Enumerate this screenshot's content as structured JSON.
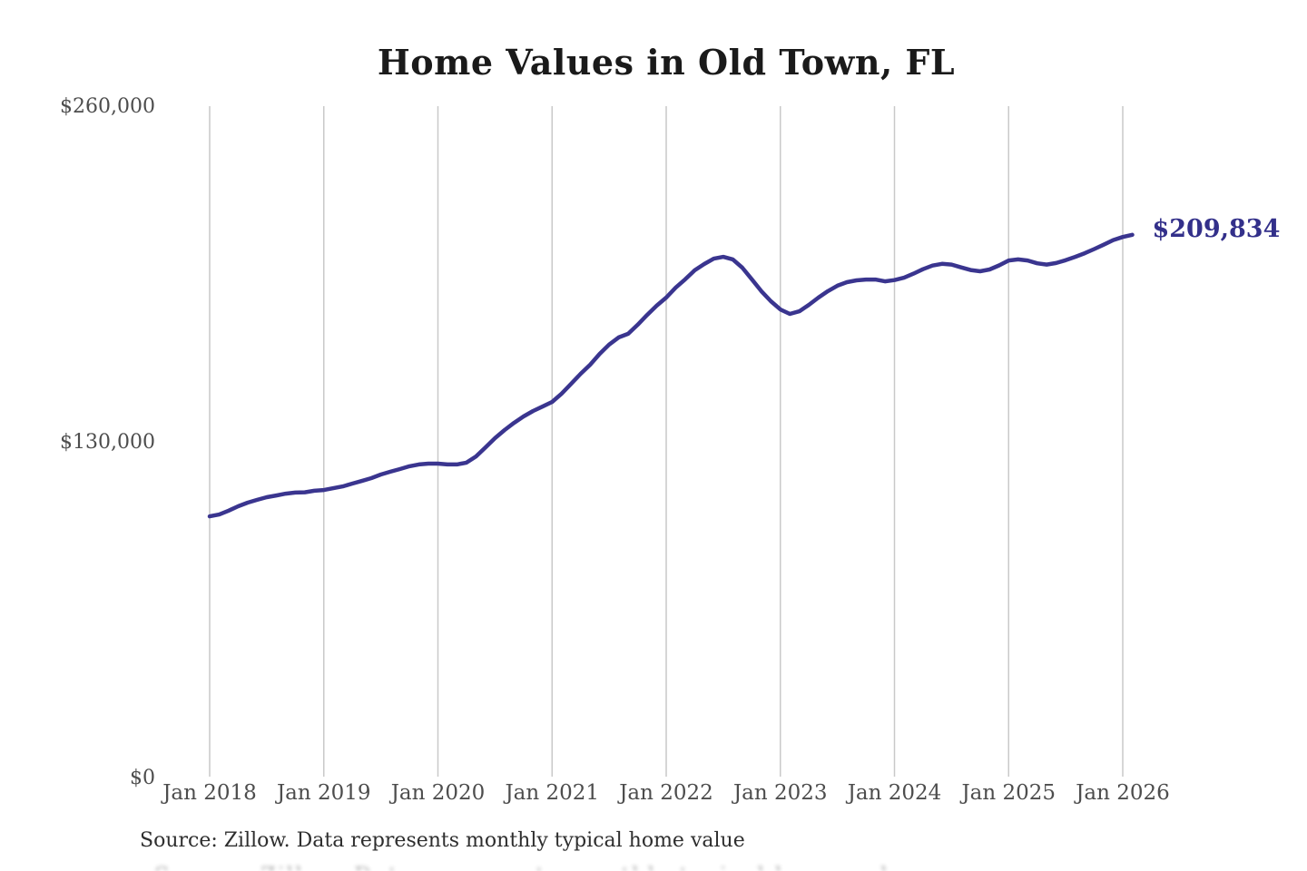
{
  "chart": {
    "title": "Home Values in Old Town, FL",
    "source": "Source: Zillow. Data represents monthly typical home value",
    "end_label": "$209,834",
    "colors": {
      "line": "#3a358f",
      "end_label": "#33308a",
      "grid": "#c9c9c9",
      "tick_text": "#4d4d4d",
      "title_text": "#1a1a1a",
      "source_text": "#2e2e2e"
    }
  },
  "chart_data": {
    "type": "line",
    "title": "Home Values in Old Town, FL",
    "xlabel": "",
    "ylabel": "",
    "ylim": [
      0,
      260000
    ],
    "grid": "vertical-only",
    "legend": "none",
    "frequency": "monthly",
    "x_start_month": "Jan 2018",
    "x_end_month": "Feb 2026",
    "final_value": 209834,
    "y_ticks": [
      {
        "label": "$260,000",
        "value": 260000
      },
      {
        "label": "$130,000",
        "value": 130000
      },
      {
        "label": "$0",
        "value": 0
      }
    ],
    "x_ticks": [
      {
        "label": "Jan 2018",
        "month_index": 0
      },
      {
        "label": "Jan 2019",
        "month_index": 12
      },
      {
        "label": "Jan 2020",
        "month_index": 24
      },
      {
        "label": "Jan 2021",
        "month_index": 36
      },
      {
        "label": "Jan 2022",
        "month_index": 48
      },
      {
        "label": "Jan 2023",
        "month_index": 60
      },
      {
        "label": "Jan 2024",
        "month_index": 72
      },
      {
        "label": "Jan 2025",
        "month_index": 84
      },
      {
        "label": "Jan 2026",
        "month_index": 96
      }
    ],
    "values": [
      100800,
      101500,
      103000,
      104700,
      106100,
      107200,
      108200,
      108900,
      109600,
      110000,
      110100,
      110700,
      111000,
      111700,
      112400,
      113500,
      114500,
      115600,
      117000,
      118100,
      119100,
      120200,
      120900,
      121200,
      121200,
      120900,
      120900,
      121600,
      124000,
      127500,
      131100,
      134200,
      137000,
      139500,
      141600,
      143300,
      145100,
      148300,
      152100,
      156000,
      159500,
      163700,
      167300,
      170100,
      171500,
      175000,
      178800,
      182400,
      185500,
      189400,
      192600,
      196100,
      198500,
      200600,
      201300,
      200300,
      197100,
      192600,
      188000,
      184100,
      180900,
      179200,
      180200,
      182700,
      185500,
      188000,
      190100,
      191500,
      192200,
      192500,
      192500,
      191800,
      192300,
      193200,
      194800,
      196500,
      197900,
      198600,
      198300,
      197200,
      196200,
      195700,
      196400,
      198000,
      199900,
      200300,
      199900,
      198800,
      198300,
      198900,
      200000,
      201300,
      202700,
      204300,
      206000,
      207800,
      209000,
      209834
    ]
  }
}
